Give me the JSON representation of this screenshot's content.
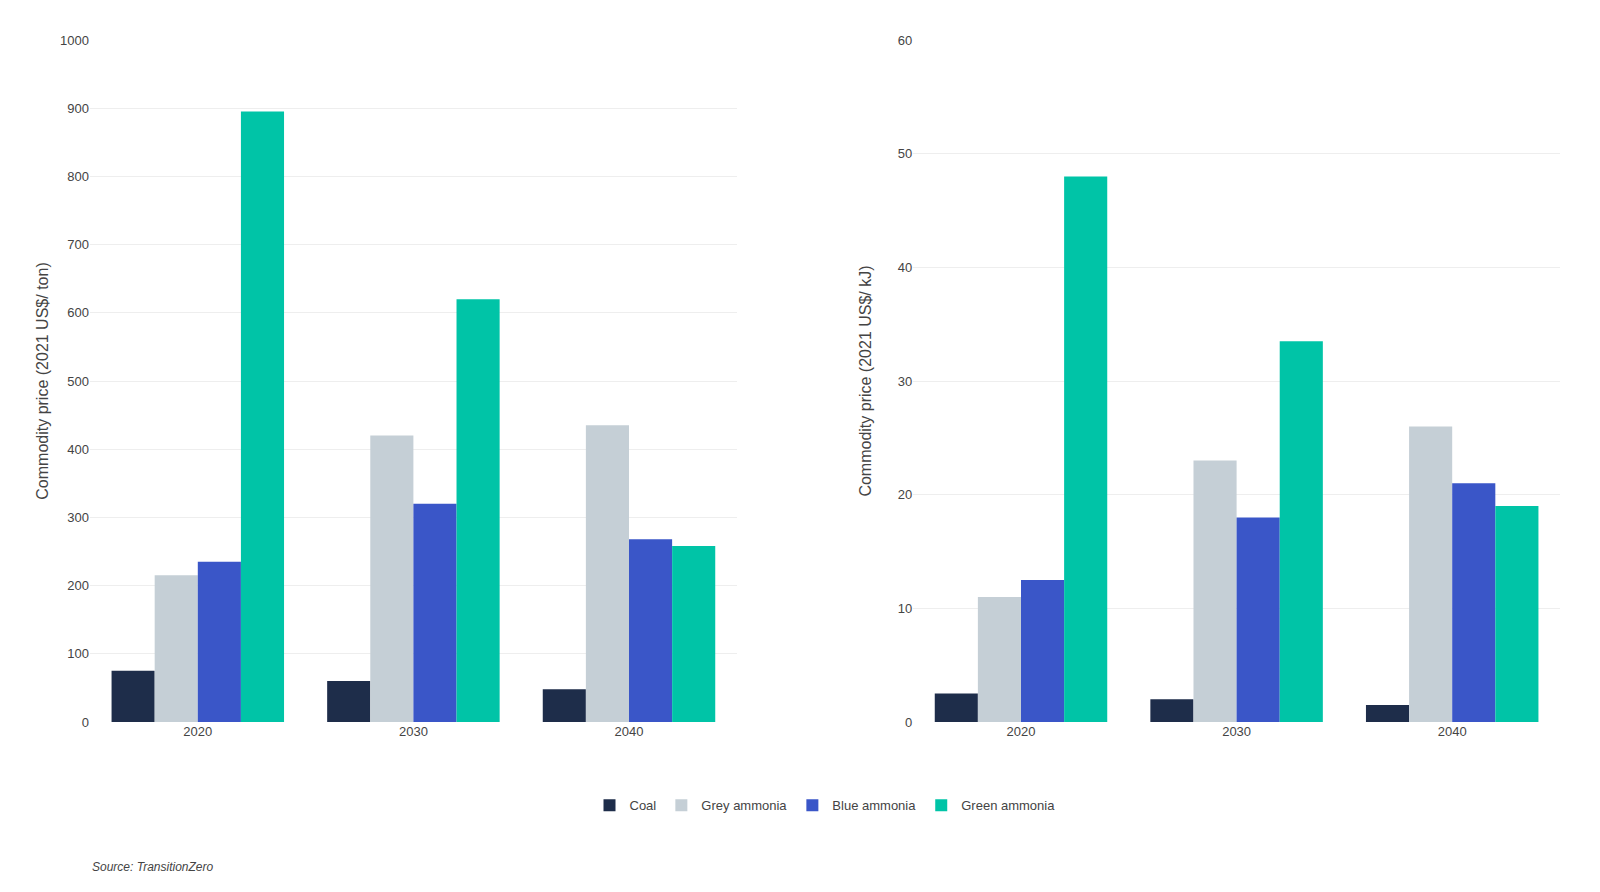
{
  "chart_data": [
    {
      "type": "bar",
      "ylabel": "Commodity price (2021 US$/ ton)",
      "categories": [
        "2020",
        "2030",
        "2040"
      ],
      "series": [
        {
          "name": "Coal",
          "color": "#1e2d4a",
          "values": [
            75,
            60,
            48
          ]
        },
        {
          "name": "Grey ammonia",
          "color": "#c5cfd6",
          "values": [
            215,
            420,
            435
          ]
        },
        {
          "name": "Blue ammonia",
          "color": "#3a56c8",
          "values": [
            235,
            320,
            268
          ]
        },
        {
          "name": "Green ammonia",
          "color": "#00c4a7",
          "values": [
            895,
            620,
            258
          ]
        }
      ],
      "ylim": [
        0,
        1000
      ],
      "yticks": [
        0,
        100,
        200,
        300,
        400,
        500,
        600,
        700,
        800,
        900,
        1000
      ],
      "grid": true,
      "legend": "bottom",
      "annotations": [
        "Source: TransitionZero"
      ]
    },
    {
      "type": "bar",
      "ylabel": "Commodity price (2021 US$/ kJ)",
      "categories": [
        "2020",
        "2030",
        "2040"
      ],
      "series": [
        {
          "name": "Coal",
          "color": "#1e2d4a",
          "values": [
            2.5,
            2.0,
            1.5
          ]
        },
        {
          "name": "Grey ammonia",
          "color": "#c5cfd6",
          "values": [
            11.0,
            23.0,
            26.0
          ]
        },
        {
          "name": "Blue ammonia",
          "color": "#3a56c8",
          "values": [
            12.5,
            18.0,
            21.0
          ]
        },
        {
          "name": "Green ammonia",
          "color": "#00c4a7",
          "values": [
            48.0,
            33.5,
            19.0
          ]
        }
      ],
      "ylim": [
        0,
        60
      ],
      "yticks": [
        0,
        10,
        20,
        30,
        40,
        50,
        60
      ],
      "grid": true,
      "legend": "bottom"
    }
  ]
}
